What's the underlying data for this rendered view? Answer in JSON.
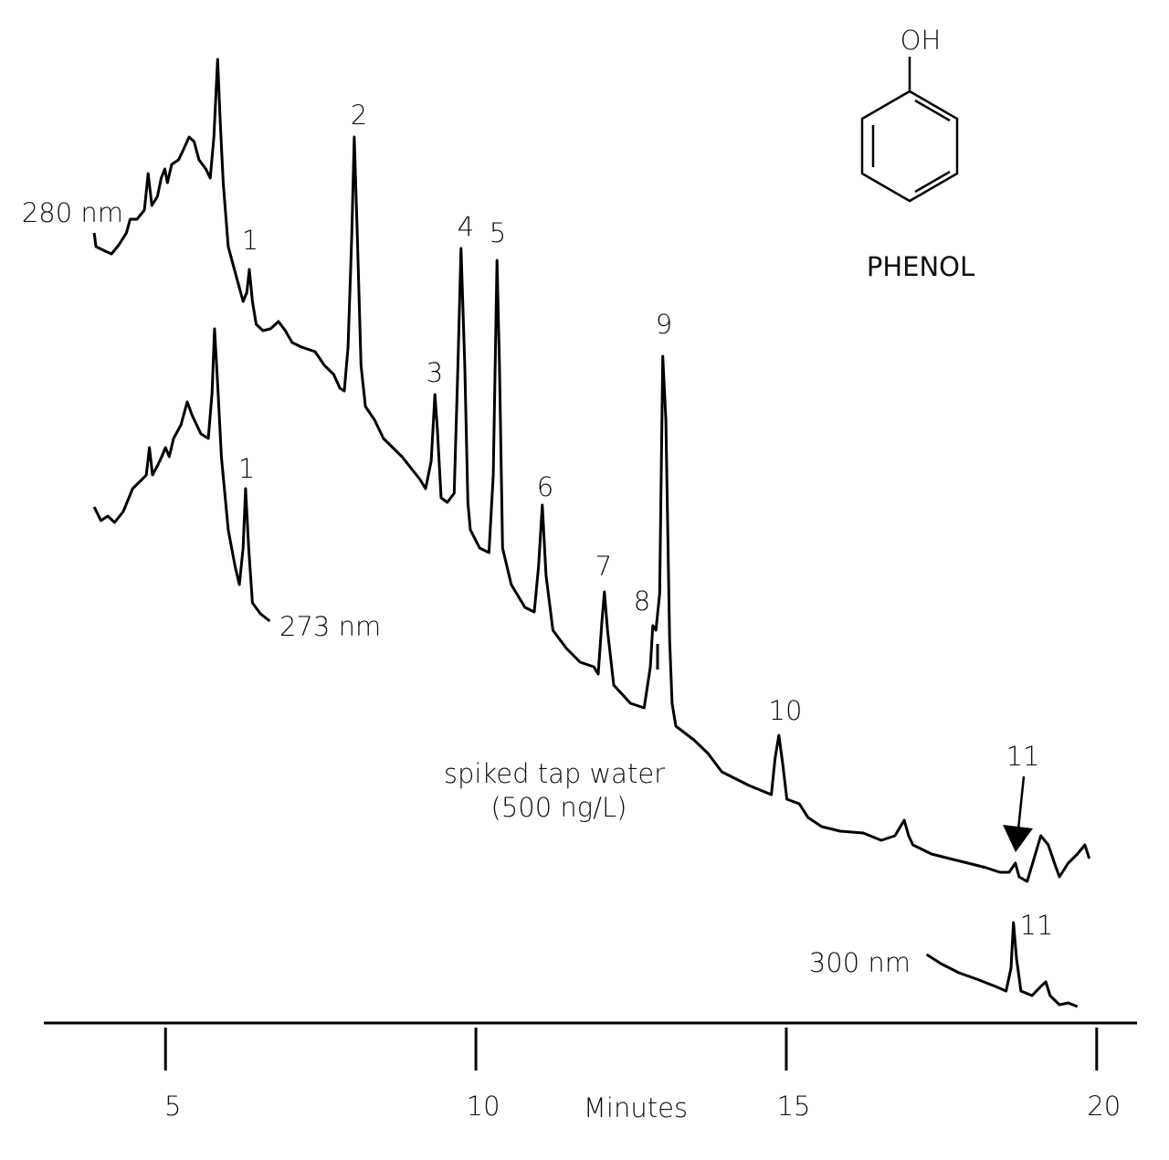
{
  "chart_data": {
    "type": "line",
    "x_label": "Minutes",
    "xlim": [
      3.04,
      20.65
    ],
    "xticks": [
      5,
      10,
      15,
      20
    ],
    "ylim": [
      0,
      105
    ],
    "structure_label": "PHENOL",
    "structure_group": "OH",
    "sample_label": [
      "spiked tap water",
      "(500 ng/L)"
    ],
    "peak_labels": [
      "1",
      "2",
      "3",
      "4",
      "5",
      "6",
      "7",
      "8",
      "9",
      "10",
      "11",
      "1",
      "11"
    ],
    "series": [
      {
        "name": "280 nm",
        "color": "#000000",
        "x": [
          3.85,
          3.88,
          4.03,
          4.13,
          4.25,
          4.37,
          4.43,
          4.54,
          4.66,
          4.72,
          4.78,
          4.87,
          4.93,
          4.99,
          5.03,
          5.1,
          5.21,
          5.28,
          5.38,
          5.46,
          5.54,
          5.65,
          5.72,
          5.78,
          5.84,
          5.88,
          5.93,
          6.01,
          6.13,
          6.25,
          6.31,
          6.35,
          6.4,
          6.46,
          6.57,
          6.69,
          6.82,
          6.93,
          7.04,
          7.19,
          7.41,
          7.56,
          7.71,
          7.81,
          7.88,
          7.94,
          8.0,
          8.04,
          8.09,
          8.15,
          8.22,
          8.37,
          8.51,
          8.81,
          9.1,
          9.19,
          9.28,
          9.34,
          9.38,
          9.44,
          9.54,
          9.65,
          9.71,
          9.76,
          9.82,
          9.87,
          9.91,
          10.06,
          10.21,
          10.28,
          10.34,
          10.38,
          10.43,
          10.57,
          10.79,
          10.94,
          11.01,
          11.07,
          11.13,
          11.24,
          11.46,
          11.68,
          11.9,
          11.97,
          12.03,
          12.07,
          12.12,
          12.22,
          12.49,
          12.71,
          12.81,
          12.85,
          12.9,
          12.96,
          13.01,
          13.06,
          13.12,
          13.16,
          13.22,
          13.51,
          13.74,
          13.96,
          14.4,
          14.76,
          14.82,
          14.88,
          14.94,
          15.01,
          15.21,
          15.35,
          15.57,
          15.87,
          16.24,
          16.53,
          16.75,
          16.9,
          16.97,
          17.04,
          17.34,
          17.63,
          17.93,
          18.22,
          18.44,
          18.59,
          18.69,
          18.75,
          18.88,
          18.99,
          19.1,
          19.22,
          19.32,
          19.4,
          19.54,
          19.69,
          19.81,
          19.88
        ],
        "values": [
          85.5,
          84.0,
          83.5,
          83.2,
          84.2,
          85.5,
          87.0,
          87.0,
          88.0,
          92.0,
          88.5,
          89.5,
          91.5,
          92.5,
          91.0,
          93.0,
          93.5,
          94.5,
          96.0,
          95.5,
          93.5,
          92.5,
          91.5,
          96.0,
          104.5,
          98.0,
          91.0,
          84.0,
          81.0,
          78.0,
          79.0,
          81.5,
          78.0,
          75.5,
          74.8,
          75.0,
          75.8,
          74.8,
          73.5,
          73.0,
          72.5,
          71.0,
          70.0,
          68.5,
          68.2,
          73.0,
          85.0,
          96.0,
          85.0,
          71.0,
          66.5,
          65.0,
          63.0,
          61.0,
          58.5,
          57.5,
          60.5,
          67.8,
          64.0,
          56.5,
          56.0,
          57.0,
          71.0,
          83.8,
          71.0,
          56.0,
          53.0,
          51.0,
          50.5,
          59.0,
          82.5,
          71.0,
          51.0,
          47.0,
          44.5,
          44.0,
          49.0,
          55.7,
          48.0,
          42.0,
          40.0,
          38.5,
          38.0,
          37.2,
          43.0,
          46.2,
          42.0,
          36.0,
          34.0,
          33.5,
          38.0,
          42.5,
          42.0,
          46.0,
          72.0,
          65.0,
          41.0,
          34.0,
          31.5,
          30.0,
          28.5,
          26.5,
          25.0,
          24.0,
          28.0,
          30.5,
          27.5,
          23.5,
          23.0,
          21.5,
          20.5,
          20.0,
          19.8,
          19.0,
          19.5,
          21.2,
          19.5,
          18.5,
          17.5,
          17.0,
          16.5,
          16.0,
          15.5,
          15.5,
          16.5,
          15.0,
          14.5,
          17.0,
          19.5,
          18.5,
          16.5,
          15.0,
          16.5,
          17.5,
          18.5,
          17.0
        ]
      },
      {
        "name": "273 nm",
        "color": "#000000",
        "x": [
          3.85,
          3.96,
          4.07,
          4.18,
          4.32,
          4.47,
          4.62,
          4.69,
          4.74,
          4.79,
          4.87,
          4.94,
          5.0,
          5.06,
          5.13,
          5.25,
          5.35,
          5.43,
          5.57,
          5.69,
          5.75,
          5.79,
          5.84,
          5.9,
          6.01,
          6.12,
          6.19,
          6.25,
          6.29,
          6.34,
          6.4,
          6.53,
          6.68
        ],
        "values": [
          55.5,
          54.0,
          54.5,
          53.8,
          55.0,
          57.5,
          58.5,
          59.0,
          62.0,
          59.0,
          60.0,
          61.0,
          62.0,
          61.0,
          63.0,
          64.5,
          67.0,
          65.5,
          63.5,
          63.0,
          68.0,
          75.0,
          69.0,
          61.0,
          53.0,
          49.0,
          47.0,
          51.0,
          57.5,
          51.0,
          45.0,
          43.8,
          43.0
        ]
      },
      {
        "name": "300 nm",
        "color": "#000000",
        "x": [
          17.26,
          17.49,
          17.78,
          18.07,
          18.37,
          18.54,
          18.62,
          18.66,
          18.71,
          18.78,
          18.96,
          19.1,
          19.18,
          19.25,
          19.4,
          19.54,
          19.69
        ],
        "values": [
          6.5,
          5.5,
          4.5,
          3.8,
          3.0,
          2.5,
          5.0,
          10.0,
          6.0,
          2.5,
          2.0,
          3.0,
          3.5,
          2.0,
          1.0,
          1.2,
          0.8
        ]
      }
    ]
  }
}
